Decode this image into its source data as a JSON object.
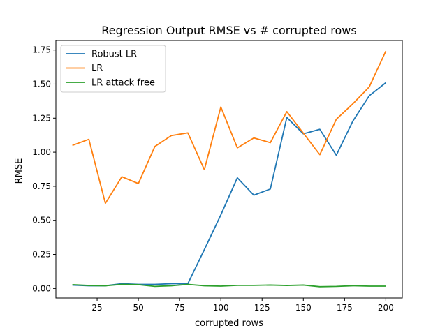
{
  "chart_data": {
    "type": "line",
    "title": "Regression Output RMSE vs # corrupted rows",
    "xlabel": "corrupted rows",
    "ylabel": "RMSE",
    "xlim": [
      0,
      210
    ],
    "ylim": [
      -0.07,
      1.82
    ],
    "xticks": [
      25,
      50,
      75,
      100,
      125,
      150,
      175,
      200
    ],
    "xtick_labels": [
      "25",
      "50",
      "75",
      "100",
      "125",
      "150",
      "175",
      "200"
    ],
    "yticks": [
      0.0,
      0.25,
      0.5,
      0.75,
      1.0,
      1.25,
      1.5,
      1.75
    ],
    "ytick_labels": [
      "0.00",
      "0.25",
      "0.50",
      "0.75",
      "1.00",
      "1.25",
      "1.50",
      "1.75"
    ],
    "grid": false,
    "legend_position": "top-left",
    "x": [
      10,
      20,
      30,
      40,
      50,
      60,
      70,
      80,
      90,
      100,
      110,
      120,
      130,
      140,
      150,
      160,
      170,
      180,
      190,
      200
    ],
    "series": [
      {
        "name": "Robust LR",
        "color": "#1f77b4",
        "values": [
          0.025,
          0.02,
          0.02,
          0.035,
          0.03,
          0.03,
          0.035,
          0.035,
          0.285,
          0.54,
          0.812,
          0.685,
          0.73,
          1.255,
          1.135,
          1.168,
          0.978,
          1.228,
          1.415,
          1.51
        ]
      },
      {
        "name": "LR",
        "color": "#ff7f0e",
        "values": [
          1.05,
          1.095,
          0.625,
          0.82,
          0.77,
          1.042,
          1.122,
          1.142,
          0.872,
          1.332,
          1.032,
          1.105,
          1.07,
          1.298,
          1.14,
          0.982,
          1.242,
          1.355,
          1.48,
          1.742
        ]
      },
      {
        "name": "LR attack free",
        "color": "#2ca02c",
        "values": [
          0.028,
          0.022,
          0.02,
          0.03,
          0.028,
          0.015,
          0.02,
          0.03,
          0.02,
          0.017,
          0.023,
          0.023,
          0.025,
          0.022,
          0.025,
          0.013,
          0.015,
          0.02,
          0.017,
          0.017
        ]
      }
    ]
  }
}
